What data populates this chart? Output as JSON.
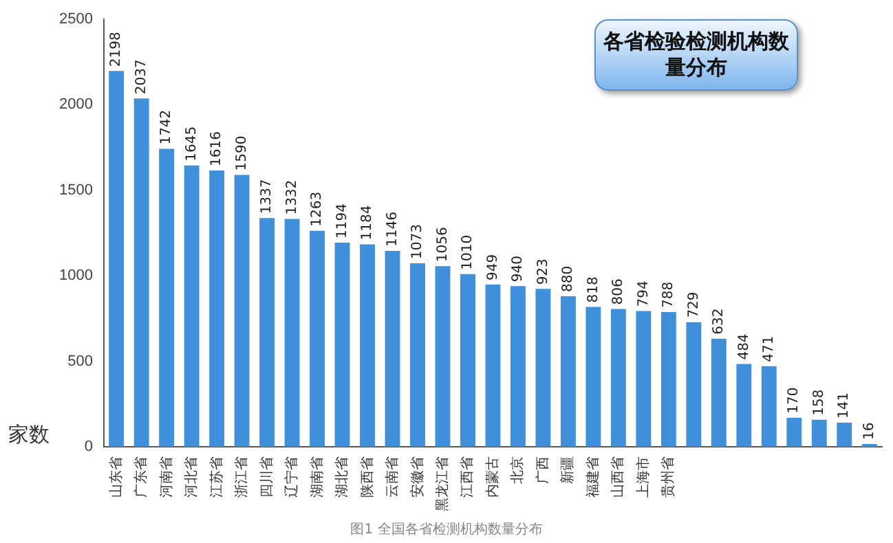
{
  "chart_data": {
    "type": "bar",
    "title": "各省检验检测机构数量分布",
    "ylabel": "家数",
    "categories": [
      "山东省",
      "广东省",
      "河南省",
      "河北省",
      "江苏省",
      "浙江省",
      "四川省",
      "辽宁省",
      "湖南省",
      "湖北省",
      "陕西省",
      "云南省",
      "安徽省",
      "黑龙江省",
      "江西省",
      "内蒙古",
      "北京",
      "广西",
      "新疆",
      "福建省",
      "山西省",
      "上海市",
      "贵州省",
      null,
      null,
      null,
      null,
      null,
      null,
      null,
      null
    ],
    "values": [
      2198,
      2037,
      1742,
      1645,
      1616,
      1590,
      1337,
      1332,
      1263,
      1194,
      1184,
      1146,
      1073,
      1056,
      1010,
      949,
      940,
      923,
      880,
      818,
      806,
      794,
      788,
      729,
      632,
      484,
      471,
      170,
      158,
      141,
      16
    ],
    "color": "#3f8fdb",
    "ylim": [
      0,
      2500
    ],
    "yticks": [
      0,
      500,
      1000,
      1500,
      2000,
      2500
    ],
    "data_labels": true,
    "grid": false,
    "legend": false,
    "annotations": [
      "图1 全国各省检测机构数量分布"
    ]
  }
}
